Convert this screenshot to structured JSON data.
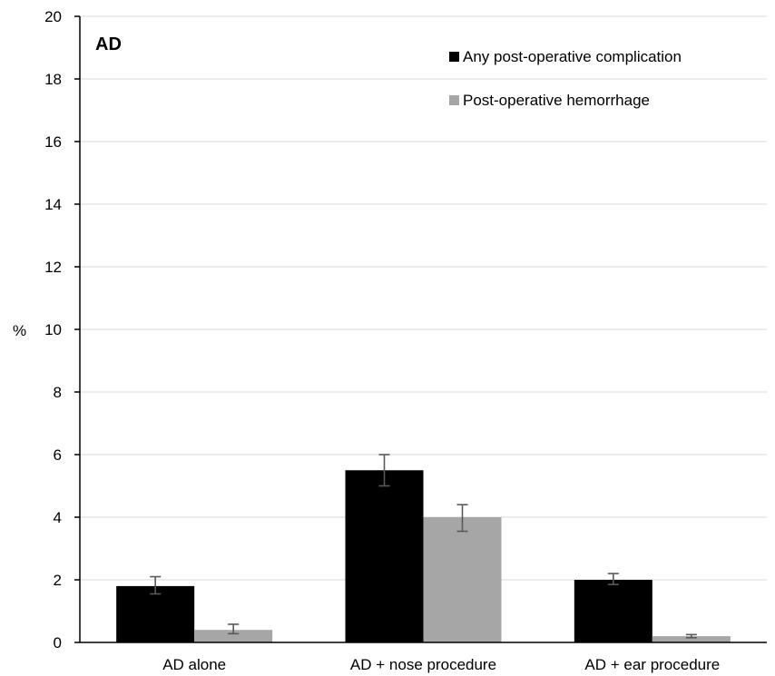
{
  "chart_data": {
    "type": "bar",
    "title": "AD",
    "ylabel": "%",
    "xlabel": "",
    "ylim": [
      0,
      20
    ],
    "yticks": [
      0,
      2,
      4,
      6,
      8,
      10,
      12,
      14,
      16,
      18,
      20
    ],
    "grid": true,
    "legend_position": "top-right",
    "categories": [
      "AD alone",
      "AD + nose procedure",
      "AD + ear procedure"
    ],
    "series": [
      {
        "name": "Any post-operative complication",
        "color": "#000000",
        "values": [
          1.8,
          5.5,
          2.0
        ],
        "err_low": [
          1.55,
          5.0,
          1.85
        ],
        "err_high": [
          2.1,
          6.0,
          2.2
        ]
      },
      {
        "name": "Post-operative hemorrhage",
        "color": "#a6a6a6",
        "values": [
          0.4,
          4.0,
          0.2
        ],
        "err_low": [
          0.28,
          3.55,
          0.15
        ],
        "err_high": [
          0.58,
          4.4,
          0.25
        ]
      }
    ]
  }
}
